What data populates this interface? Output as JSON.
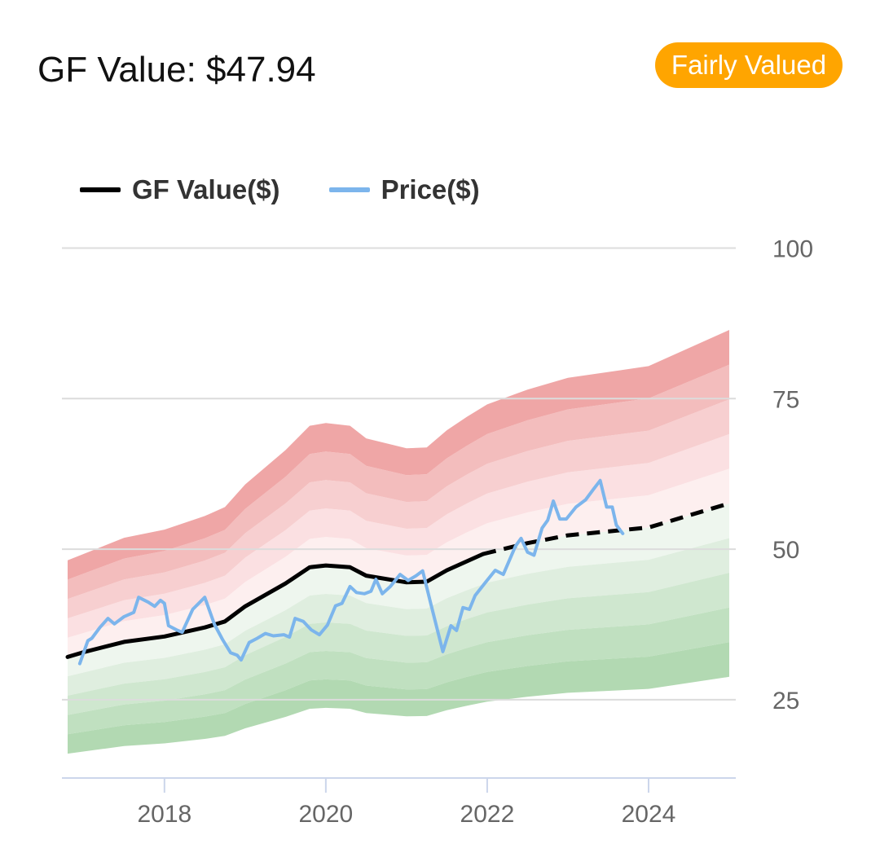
{
  "header": {
    "title": "GF Value: $47.94",
    "badge": "Fairly Valued",
    "badge_color": "#FFA500"
  },
  "legend": {
    "items": [
      {
        "label": "GF Value($)",
        "color": "#000000"
      },
      {
        "label": "Price($)",
        "color": "#7CB5EC"
      }
    ]
  },
  "chart_data": {
    "type": "line",
    "title": "",
    "xlabel": "",
    "ylabel": "",
    "xlim": [
      2016.8,
      2025.0
    ],
    "ylim": [
      12,
      100
    ],
    "y_ticks": [
      25,
      50,
      75,
      100
    ],
    "x_ticks": [
      2018,
      2020,
      2022,
      2024
    ],
    "grid": true,
    "legend_position": "top-left",
    "series": [
      {
        "name": "GF Value($)",
        "color": "#000000",
        "style": "solid",
        "points": [
          [
            2016.8,
            32.1
          ],
          [
            2017.0,
            32.9
          ],
          [
            2017.5,
            34.6
          ],
          [
            2018.0,
            35.5
          ],
          [
            2018.5,
            37.0
          ],
          [
            2018.75,
            38.0
          ],
          [
            2019.0,
            40.5
          ],
          [
            2019.5,
            44.3
          ],
          [
            2019.8,
            47.0
          ],
          [
            2020.0,
            47.3
          ],
          [
            2020.3,
            47.0
          ],
          [
            2020.5,
            45.6
          ],
          [
            2021.0,
            44.5
          ],
          [
            2021.25,
            44.6
          ],
          [
            2021.5,
            46.5
          ],
          [
            2021.75,
            48.0
          ],
          [
            2021.95,
            49.2
          ]
        ]
      },
      {
        "name": "GF Value($)",
        "color": "#000000",
        "style": "dashed",
        "points": [
          [
            2021.95,
            49.2
          ],
          [
            2022.5,
            51.0
          ],
          [
            2023.0,
            52.3
          ],
          [
            2024.0,
            53.6
          ],
          [
            2025.0,
            57.6
          ]
        ]
      },
      {
        "name": "Price($)",
        "color": "#7CB5EC",
        "style": "solid",
        "points": [
          [
            2016.95,
            31.0
          ],
          [
            2017.05,
            34.8
          ],
          [
            2017.1,
            35.2
          ],
          [
            2017.2,
            37.0
          ],
          [
            2017.3,
            38.5
          ],
          [
            2017.38,
            37.6
          ],
          [
            2017.5,
            38.8
          ],
          [
            2017.62,
            39.5
          ],
          [
            2017.68,
            42.0
          ],
          [
            2017.8,
            41.2
          ],
          [
            2017.88,
            40.5
          ],
          [
            2017.95,
            41.5
          ],
          [
            2018.0,
            41.0
          ],
          [
            2018.05,
            37.3
          ],
          [
            2018.15,
            36.6
          ],
          [
            2018.22,
            36.2
          ],
          [
            2018.35,
            40.0
          ],
          [
            2018.5,
            42.0
          ],
          [
            2018.62,
            37.5
          ],
          [
            2018.72,
            35.0
          ],
          [
            2018.82,
            32.8
          ],
          [
            2018.9,
            32.4
          ],
          [
            2018.95,
            31.6
          ],
          [
            2019.05,
            34.5
          ],
          [
            2019.15,
            35.2
          ],
          [
            2019.25,
            36.0
          ],
          [
            2019.35,
            35.6
          ],
          [
            2019.48,
            35.8
          ],
          [
            2019.55,
            35.4
          ],
          [
            2019.62,
            38.5
          ],
          [
            2019.72,
            38.0
          ],
          [
            2019.82,
            36.6
          ],
          [
            2019.92,
            35.8
          ],
          [
            2020.02,
            37.4
          ],
          [
            2020.12,
            40.6
          ],
          [
            2020.2,
            41.0
          ],
          [
            2020.3,
            43.8
          ],
          [
            2020.38,
            42.8
          ],
          [
            2020.48,
            42.6
          ],
          [
            2020.56,
            43.0
          ],
          [
            2020.62,
            45.0
          ],
          [
            2020.7,
            42.6
          ],
          [
            2020.8,
            43.8
          ],
          [
            2020.92,
            45.8
          ],
          [
            2021.02,
            44.8
          ],
          [
            2021.12,
            45.6
          ],
          [
            2021.2,
            46.4
          ],
          [
            2021.3,
            41.0
          ],
          [
            2021.45,
            33.0
          ],
          [
            2021.55,
            37.3
          ],
          [
            2021.62,
            36.5
          ],
          [
            2021.7,
            40.3
          ],
          [
            2021.78,
            40.0
          ],
          [
            2021.85,
            42.3
          ],
          [
            2021.98,
            44.5
          ],
          [
            2022.1,
            46.5
          ],
          [
            2022.2,
            45.8
          ],
          [
            2022.35,
            50.5
          ],
          [
            2022.42,
            51.8
          ],
          [
            2022.5,
            49.5
          ],
          [
            2022.58,
            49.0
          ],
          [
            2022.68,
            53.5
          ],
          [
            2022.75,
            54.8
          ],
          [
            2022.82,
            58.0
          ],
          [
            2022.9,
            55.0
          ],
          [
            2022.98,
            55.0
          ],
          [
            2023.1,
            57.0
          ],
          [
            2023.22,
            58.2
          ],
          [
            2023.32,
            60.0
          ],
          [
            2023.4,
            61.4
          ],
          [
            2023.48,
            57.0
          ],
          [
            2023.55,
            57.0
          ],
          [
            2023.6,
            54.0
          ],
          [
            2023.68,
            52.6
          ]
        ]
      }
    ],
    "valuation_bands": {
      "x": [
        2016.8,
        2017.5,
        2018.0,
        2018.5,
        2018.75,
        2019.0,
        2019.5,
        2019.8,
        2020.0,
        2020.3,
        2020.5,
        2021.0,
        2021.25,
        2021.5,
        2021.75,
        2022.0,
        2022.5,
        2023.0,
        2024.0,
        2025.0
      ],
      "upper_multipliers": [
        1.1,
        1.2,
        1.3,
        1.4,
        1.5
      ],
      "lower_multipliers": [
        0.9,
        0.8,
        0.7,
        0.6,
        0.5
      ],
      "upper_colors": [
        "#FDEFEF",
        "#FBE0E2",
        "#F7CFD0",
        "#F3BDBD",
        "#EFA6A6"
      ],
      "lower_colors": [
        "#EEF6EE",
        "#DFEEDF",
        "#CFE7CF",
        "#C0E0C0",
        "#B2D9B2"
      ]
    }
  }
}
